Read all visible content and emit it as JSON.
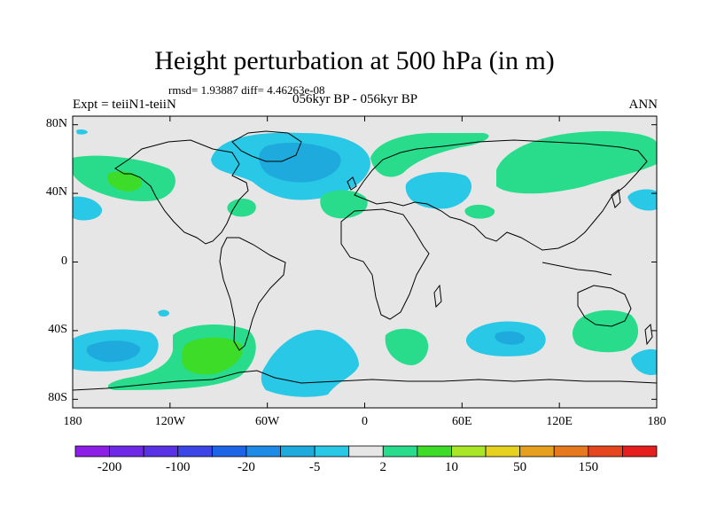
{
  "title": "Height perturbation at 500 hPa (in m)",
  "stats": "rmsd= 1.93887  diff= 4.46263e-08",
  "experiment": "Expt = teiiN1-teiiN",
  "period": "056kyr BP - 056kyr BP",
  "season": "ANN",
  "lat_ticks": [
    {
      "label": "80N",
      "lat": 80
    },
    {
      "label": "40N",
      "lat": 40
    },
    {
      "label": "0",
      "lat": 0
    },
    {
      "label": "40S",
      "lat": -40
    },
    {
      "label": "80S",
      "lat": -80
    }
  ],
  "lon_ticks": [
    {
      "label": "180",
      "lon": -180
    },
    {
      "label": "120W",
      "lon": -120
    },
    {
      "label": "60W",
      "lon": -60
    },
    {
      "label": "0",
      "lon": 0
    },
    {
      "label": "60E",
      "lon": 60
    },
    {
      "label": "120E",
      "lon": 120
    },
    {
      "label": "180",
      "lon": 180
    }
  ],
  "colorbar": {
    "colors": [
      "#8c1ee6",
      "#6e28e6",
      "#5a32e6",
      "#3c46e6",
      "#1e64e6",
      "#1e8ce6",
      "#1eaadc",
      "#28c8e6",
      "#e6e6e6",
      "#28dc8c",
      "#3cdc28",
      "#aae628",
      "#e6d21e",
      "#e6a01e",
      "#e6781e",
      "#e6461e",
      "#e61e1e"
    ],
    "labels": [
      {
        "text": "-200",
        "index": 1
      },
      {
        "text": "-100",
        "index": 3
      },
      {
        "text": "-20",
        "index": 5
      },
      {
        "text": "-5",
        "index": 7
      },
      {
        "text": "2",
        "index": 9
      },
      {
        "text": "10",
        "index": 11
      },
      {
        "text": "50",
        "index": 13
      },
      {
        "text": "150",
        "index": 15
      }
    ]
  },
  "map_colors": {
    "background": "#e6e6e6",
    "cyan": "#28c8e6",
    "blue": "#1eaadc",
    "green": "#28dc8c",
    "bright_green": "#3cdc28",
    "coast": "#000000"
  }
}
